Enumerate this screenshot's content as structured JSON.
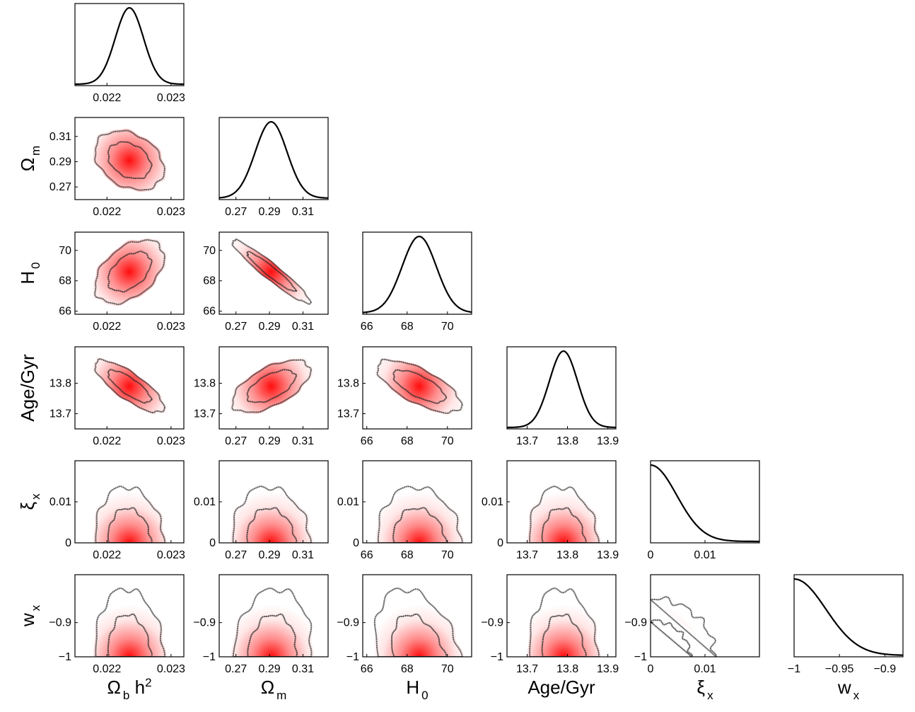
{
  "chart_data": {
    "type": "corner",
    "parameters": [
      {
        "key": "omega_b_h2",
        "label": "Ω",
        "sub": "b",
        "suffix": " h",
        "sup": "2",
        "range": [
          0.0215,
          0.0232
        ],
        "ticks": [
          0.022,
          0.023
        ],
        "tick_labels": [
          "0.022",
          "0.023"
        ],
        "mean": 0.02235,
        "sigma": 0.00022,
        "kind": "gauss"
      },
      {
        "key": "omega_m",
        "label": "Ω",
        "sub": "m",
        "suffix": "",
        "sup": "",
        "range": [
          0.26,
          0.325
        ],
        "ticks": [
          0.27,
          0.29,
          0.31
        ],
        "tick_labels": [
          "0.27",
          "0.29",
          "0.31"
        ],
        "mean": 0.291,
        "sigma": 0.0095,
        "kind": "gauss"
      },
      {
        "key": "H0",
        "label": "H",
        "sub": "0",
        "suffix": "",
        "sup": "",
        "range": [
          65.8,
          71.2
        ],
        "ticks": [
          66,
          68,
          70
        ],
        "tick_labels": [
          "66",
          "68",
          "70"
        ],
        "mean": 68.6,
        "sigma": 0.85,
        "kind": "gauss"
      },
      {
        "key": "age",
        "label": "Age/Gyr",
        "sub": "",
        "suffix": "",
        "sup": "",
        "range": [
          13.65,
          13.92
        ],
        "ticks": [
          13.7,
          13.8,
          13.9
        ],
        "tick_labels": [
          "13.7",
          "13.8",
          "13.9"
        ],
        "mean": 13.79,
        "sigma": 0.035,
        "kind": "gauss"
      },
      {
        "key": "xi_x",
        "label": "ξ",
        "sub": "x",
        "suffix": "",
        "sup": "",
        "range": [
          0,
          0.02
        ],
        "ticks": [
          0,
          0.01
        ],
        "tick_labels": [
          "0",
          "0.01"
        ],
        "mean": 0,
        "sigma": 0.0048,
        "kind": "half"
      },
      {
        "key": "w_x",
        "label": "w",
        "sub": "x",
        "suffix": "",
        "sup": "",
        "range": [
          -1,
          -0.88
        ],
        "ticks": [
          -1,
          -0.95,
          -0.9
        ],
        "tick_labels": [
          "−1",
          "−0.95",
          "−0.9"
        ],
        "mean": -1,
        "sigma": 0.035,
        "kind": "half"
      }
    ],
    "correlations": [
      [
        1,
        -0.3,
        0.45,
        -0.8,
        0,
        0
      ],
      [
        -0.3,
        1,
        -0.95,
        0.6,
        0,
        0.4
      ],
      [
        0.45,
        -0.95,
        1,
        -0.7,
        0,
        -0.45
      ],
      [
        -0.8,
        0.6,
        -0.7,
        1,
        0,
        0
      ],
      [
        0,
        0,
        0,
        0,
        1,
        -0.3
      ],
      [
        0,
        0.4,
        -0.45,
        0,
        -0.3,
        1
      ]
    ],
    "y_tick_labels": {
      "omega_m": [
        "0.27",
        "0.29",
        "0.31"
      ],
      "H0": [
        "66",
        "68",
        "70"
      ],
      "age": [
        "13.7",
        "13.8"
      ],
      "xi_x": [
        "0",
        "0.01"
      ],
      "w_x": [
        "−1",
        "−0.9"
      ]
    },
    "contour_levels": [
      "68%",
      "95%"
    ],
    "colors": {
      "fill": "#ff0000",
      "contour": "#000000",
      "line": "#000000"
    }
  }
}
